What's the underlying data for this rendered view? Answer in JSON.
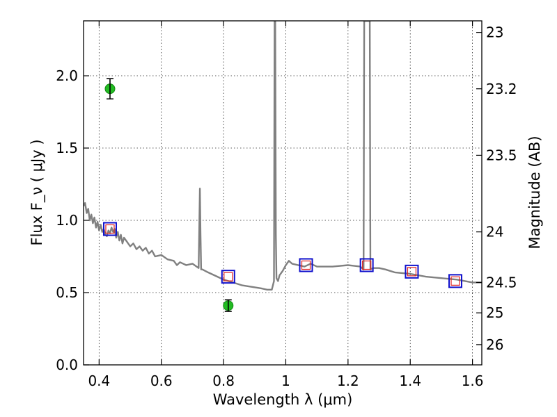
{
  "chart_data": {
    "type": "scatter",
    "xlabel": "Wavelength  λ (μm)",
    "ylabel": "Flux  F_ν  ( μJy )",
    "y2label": "Magnitude (AB)",
    "xlim": [
      0.35,
      1.63
    ],
    "ylim": [
      0.0,
      2.38
    ],
    "x_ticks": [
      0.4,
      0.6,
      0.8,
      1.0,
      1.2,
      1.4,
      1.6
    ],
    "x_tick_labels": [
      "0.4",
      "0.6",
      "0.8",
      "1",
      "1.2",
      "1.4",
      "1.6"
    ],
    "y_ticks": [
      0.0,
      0.5,
      1.0,
      1.5,
      2.0
    ],
    "y_tick_labels": [
      "0.0",
      "0.5",
      "1.0",
      "1.5",
      "2.0"
    ],
    "y2_ticks": [
      {
        "label": "23",
        "flux": 2.3
      },
      {
        "label": "23.2",
        "flux": 1.91
      },
      {
        "label": "23.5",
        "flux": 1.45
      },
      {
        "label": "24",
        "flux": 0.92
      },
      {
        "label": "24.5",
        "flux": 0.57
      },
      {
        "label": "25",
        "flux": 0.36
      },
      {
        "label": "26",
        "flux": 0.14
      }
    ],
    "grid": true,
    "series": [
      {
        "role": "model-spectrum",
        "color": "#808080",
        "x": [
          0.35,
          0.355,
          0.36,
          0.365,
          0.37,
          0.375,
          0.38,
          0.385,
          0.39,
          0.395,
          0.4,
          0.405,
          0.41,
          0.415,
          0.42,
          0.425,
          0.43,
          0.435,
          0.44,
          0.445,
          0.45,
          0.455,
          0.46,
          0.465,
          0.47,
          0.475,
          0.48,
          0.49,
          0.5,
          0.51,
          0.52,
          0.53,
          0.54,
          0.55,
          0.56,
          0.57,
          0.58,
          0.6,
          0.62,
          0.64,
          0.65,
          0.66,
          0.68,
          0.7,
          0.72,
          0.724,
          0.726,
          0.728,
          0.732,
          0.75,
          0.78,
          0.8,
          0.83,
          0.86,
          0.89,
          0.92,
          0.94,
          0.955,
          0.962,
          0.964,
          0.966,
          0.968,
          0.97,
          0.975,
          0.98,
          0.99,
          1.0,
          1.01,
          1.02,
          1.04,
          1.06,
          1.08,
          1.1,
          1.15,
          1.2,
          1.24,
          1.25,
          1.252,
          1.255,
          1.27,
          1.272,
          1.28,
          1.3,
          1.32,
          1.35,
          1.4,
          1.45,
          1.5,
          1.55,
          1.6,
          1.63
        ],
        "y": [
          1.1,
          1.12,
          1.05,
          1.08,
          1.0,
          1.04,
          0.98,
          1.02,
          0.95,
          0.99,
          0.93,
          0.97,
          0.92,
          0.94,
          0.9,
          0.89,
          0.93,
          0.91,
          0.95,
          0.92,
          0.94,
          0.88,
          0.92,
          0.86,
          0.9,
          0.84,
          0.88,
          0.85,
          0.82,
          0.84,
          0.8,
          0.82,
          0.79,
          0.81,
          0.77,
          0.79,
          0.75,
          0.76,
          0.73,
          0.72,
          0.69,
          0.71,
          0.69,
          0.7,
          0.67,
          1.22,
          0.9,
          0.66,
          0.66,
          0.64,
          0.61,
          0.59,
          0.57,
          0.55,
          0.54,
          0.53,
          0.52,
          0.52,
          0.58,
          2.38,
          2.38,
          0.9,
          0.6,
          0.58,
          0.62,
          0.65,
          0.69,
          0.72,
          0.7,
          0.69,
          0.68,
          0.7,
          0.68,
          0.68,
          0.69,
          0.68,
          0.66,
          2.38,
          2.38,
          2.38,
          0.66,
          0.67,
          0.67,
          0.66,
          0.64,
          0.63,
          0.61,
          0.6,
          0.59,
          0.57,
          0.57
        ]
      },
      {
        "role": "model-photometry",
        "color": "#1111cc",
        "x": [
          0.435,
          0.815,
          1.065,
          1.26,
          1.405,
          1.545
        ],
        "y": [
          0.94,
          0.61,
          0.69,
          0.69,
          0.645,
          0.58
        ]
      },
      {
        "role": "observed-photometry",
        "color": "#22bb22",
        "x": [
          0.435,
          0.815
        ],
        "y": [
          1.91,
          0.41
        ],
        "yerr": [
          0.07,
          0.04
        ]
      }
    ]
  }
}
